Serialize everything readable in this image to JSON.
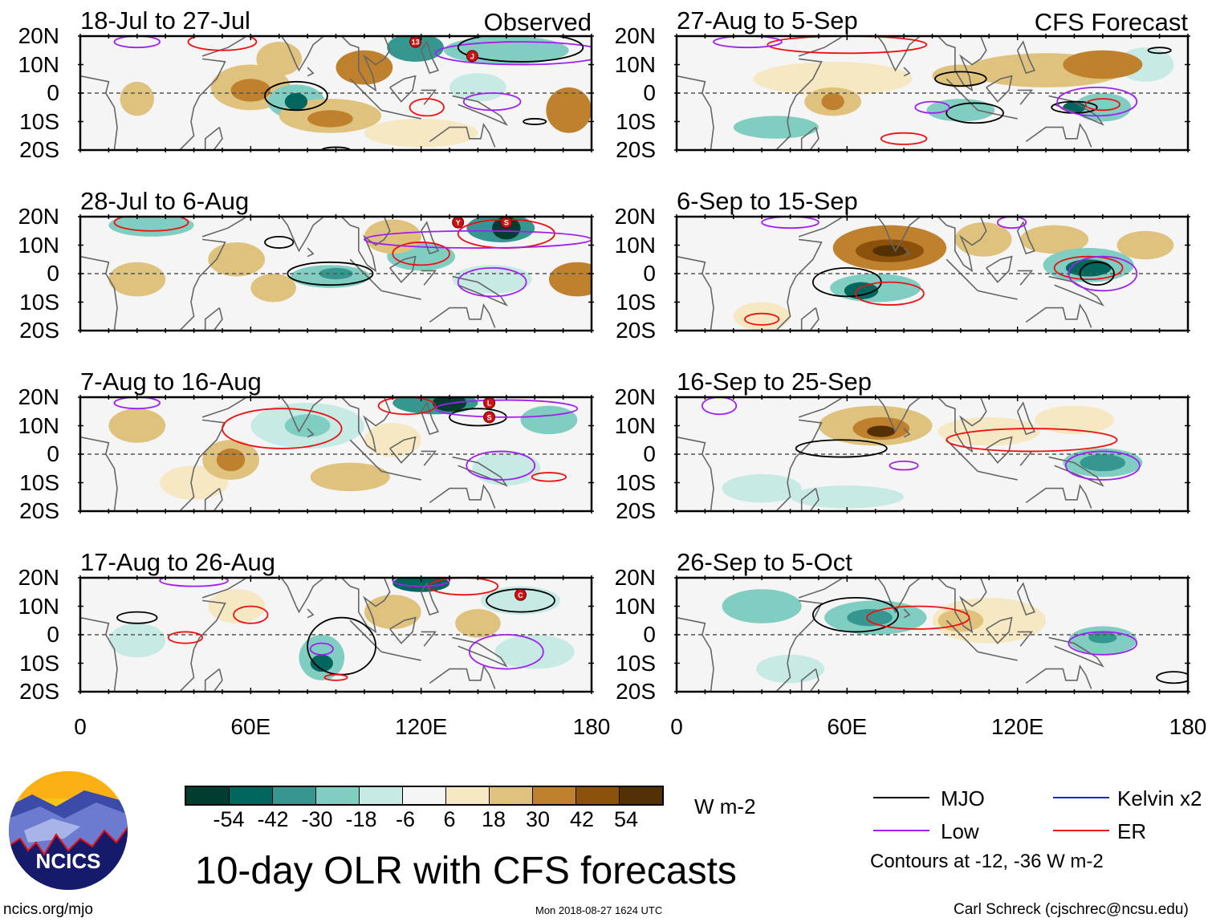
{
  "panels_left": [
    {
      "title": "18-Jul to 27-Jul",
      "tag": "Observed",
      "storms": [
        "13",
        "J"
      ]
    },
    {
      "title": "28-Jul to 6-Aug",
      "storms": [
        "Y",
        "S"
      ]
    },
    {
      "title": "7-Aug to 16-Aug",
      "storms": [
        "L",
        "S"
      ]
    },
    {
      "title": "17-Aug to 26-Aug",
      "storms": [
        "C"
      ]
    }
  ],
  "panels_right": [
    {
      "title": "27-Aug to 5-Sep",
      "tag": "CFS Forecast"
    },
    {
      "title": "6-Sep to 15-Sep"
    },
    {
      "title": "16-Sep to 25-Sep"
    },
    {
      "title": "26-Sep to 5-Oct"
    }
  ],
  "y_ticks": [
    "20N",
    "10N",
    "0",
    "10S",
    "20S"
  ],
  "x_ticks": [
    "0",
    "60E",
    "120E",
    "180"
  ],
  "chart_data": {
    "type": "heatmap",
    "title": "10-day OLR with CFS forecasts",
    "units": "W m-2",
    "lon_range": [
      0,
      180
    ],
    "lat_range": [
      -20,
      20
    ],
    "colorbar": {
      "levels": [
        "-54",
        "-42",
        "-30",
        "-18",
        "-6",
        "6",
        "18",
        "30",
        "42",
        "54"
      ],
      "colors": [
        "#003c30",
        "#01665e",
        "#35978f",
        "#80cdc1",
        "#c7eae5",
        "#f5f5f5",
        "#f6e8c3",
        "#dfc27d",
        "#bf812d",
        "#8c510a",
        "#543005"
      ]
    },
    "legend": [
      {
        "label": "MJO",
        "color": "#000000"
      },
      {
        "label": "Kelvin x2",
        "color": "#2222dd"
      },
      {
        "label": "Low",
        "color": "#a020f0"
      },
      {
        "label": "ER",
        "color": "#ee1111"
      }
    ],
    "contour_note": "Contours at -12, -36 W m-2"
  },
  "footer": {
    "logo_text": "NCICS",
    "url": "ncics.org/mjo",
    "timestamp": "Mon 2018-08-27 1624 UTC",
    "author": "Carl Schreck (cjschrec@ncsu.edu)"
  }
}
